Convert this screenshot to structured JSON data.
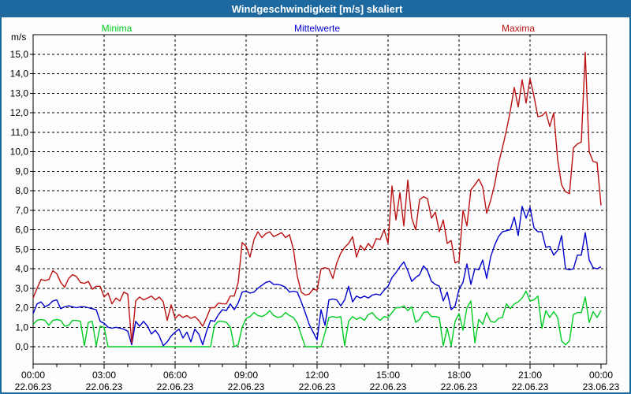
{
  "window": {
    "title": "Windgeschwindigkeit [m/s] skaliert"
  },
  "colors": {
    "frame": "#1d689e",
    "titlebar_bg": "#1d689e",
    "titlebar_text": "#ffffff",
    "plot_bg": "#ffffff",
    "grid": "#000000",
    "minima": "#00cc22",
    "mittelwerte": "#0000cc",
    "maxima": "#bb1111"
  },
  "legend": [
    {
      "label": "Minima",
      "color": "#00cc22"
    },
    {
      "label": "Mittelwerte",
      "color": "#0000cc"
    },
    {
      "label": "Maxima",
      "color": "#bb1111"
    }
  ],
  "axes": {
    "y_unit_label": "m/s",
    "y_tick_labels": [
      "0,0",
      "1,0",
      "2,0",
      "3,0",
      "4,0",
      "5,0",
      "6,0",
      "7,0",
      "8,0",
      "9,0",
      "10,0",
      "11,0",
      "12,0",
      "13,0",
      "14,0",
      "15,0"
    ],
    "x_ticks": [
      {
        "time": "00:00",
        "date": "22.06.23"
      },
      {
        "time": "03:00",
        "date": "22.06.23"
      },
      {
        "time": "06:00",
        "date": "22.06.23"
      },
      {
        "time": "09:00",
        "date": "22.06.23"
      },
      {
        "time": "12:00",
        "date": "22.06.23"
      },
      {
        "time": "15:00",
        "date": "22.06.23"
      },
      {
        "time": "18:00",
        "date": "22.06.23"
      },
      {
        "time": "21:00",
        "date": "22.06.23"
      },
      {
        "time": "00:00",
        "date": "23.06.23"
      }
    ]
  },
  "chart_data": {
    "type": "line",
    "title": "Windgeschwindigkeit [m/s] skaliert",
    "ylabel": "m/s",
    "ylim": [
      0,
      15
    ],
    "y_major_step": 1.0,
    "grid": true,
    "legend_position": "top",
    "x_start": "22.06.23 00:00",
    "x_end": "23.06.23 00:00",
    "x_interval_minutes": 10,
    "x_major_tick_hours": 3,
    "x_minor_tick_hours": 1,
    "series": [
      {
        "name": "Minima",
        "color": "#00cc22",
        "values": [
          1.15,
          1.35,
          1.4,
          1.35,
          1.1,
          1.35,
          1.4,
          1.35,
          1.05,
          1.1,
          1.35,
          1.35,
          1.3,
          0.05,
          1.25,
          1.3,
          0.05,
          1.05,
          1.0,
          0.0,
          0.0,
          0.0,
          0.0,
          0.0,
          0.0,
          0.0,
          0.0,
          0.0,
          0.0,
          0.0,
          0.0,
          0.0,
          0.0,
          0.0,
          0.0,
          0.0,
          0.0,
          0.0,
          0.0,
          0.0,
          0.0,
          0.0,
          0.0,
          0.0,
          0.0,
          0.0,
          1.1,
          1.3,
          1.3,
          1.25,
          1.0,
          0.0,
          0.1,
          1.0,
          1.45,
          1.55,
          1.75,
          1.6,
          1.55,
          1.65,
          1.85,
          1.6,
          1.5,
          1.55,
          1.75,
          1.6,
          1.5,
          1.2,
          0.6,
          0.0,
          0.0,
          0.0,
          0.0,
          0.0,
          0.7,
          1.5,
          1.55,
          1.5,
          1.55,
          0.05,
          1.3,
          1.55,
          1.4,
          1.5,
          1.35,
          1.65,
          1.75,
          1.5,
          1.35,
          1.55,
          1.5,
          1.75,
          2.0,
          2.0,
          2.1,
          1.85,
          2.05,
          1.25,
          1.4,
          1.75,
          1.8,
          1.55,
          1.55,
          1.5,
          0.05,
          0.95,
          0.05,
          1.3,
          1.7,
          0.85,
          2.0,
          2.35,
          0.2,
          1.4,
          1.15,
          1.75,
          1.3,
          1.25,
          1.45,
          1.5,
          2.2,
          1.95,
          2.2,
          2.3,
          2.5,
          2.85,
          2.35,
          2.4,
          2.6,
          0.95,
          1.85,
          1.5,
          1.8,
          1.5,
          0.3,
          0.1,
          0.3,
          1.65,
          1.75,
          1.75,
          2.55,
          1.25,
          1.8,
          1.5,
          1.85
        ]
      },
      {
        "name": "Mittelwerte",
        "color": "#0000cc",
        "values": [
          1.7,
          2.2,
          2.3,
          2.05,
          2.15,
          2.35,
          2.4,
          1.95,
          2.05,
          2.1,
          2.05,
          2.0,
          2.05,
          2.05,
          2.0,
          1.95,
          1.9,
          1.3,
          1.2,
          1.0,
          0.95,
          1.0,
          0.95,
          0.9,
          0.8,
          0.1,
          1.3,
          1.05,
          1.3,
          1.05,
          0.65,
          0.85,
          0.55,
          0.05,
          0.25,
          0.55,
          0.75,
          0.9,
          0.45,
          0.75,
          0.25,
          0.9,
          0.65,
          0.1,
          0.8,
          1.35,
          1.3,
          1.65,
          1.9,
          1.85,
          2.2,
          1.9,
          2.25,
          2.8,
          2.85,
          2.75,
          2.8,
          3.0,
          3.15,
          3.3,
          3.35,
          3.2,
          3.2,
          3.15,
          3.05,
          2.8,
          2.85,
          2.8,
          2.3,
          1.75,
          1.15,
          0.75,
          0.35,
          1.9,
          1.1,
          2.4,
          2.45,
          2.4,
          2.1,
          2.4,
          3.1,
          2.3,
          2.6,
          2.5,
          2.6,
          2.5,
          2.65,
          2.7,
          2.65,
          2.9,
          3.1,
          3.55,
          3.8,
          4.1,
          4.35,
          3.9,
          3.35,
          3.55,
          3.7,
          4.15,
          3.9,
          3.35,
          3.2,
          3.1,
          2.35,
          2.8,
          1.9,
          2.1,
          2.95,
          3.3,
          4.25,
          3.2,
          4.0,
          3.95,
          4.45,
          3.5,
          4.6,
          5.2,
          5.65,
          5.9,
          5.95,
          6.0,
          6.65,
          5.7,
          7.2,
          6.6,
          7.15,
          6.1,
          5.9,
          5.9,
          5.1,
          5.15,
          4.7,
          4.95,
          5.7,
          4.0,
          3.95,
          4.0,
          4.7,
          4.7,
          5.85,
          4.45,
          4.05,
          4.0,
          4.1
        ]
      },
      {
        "name": "Maxima",
        "color": "#bb1111",
        "values": [
          2.5,
          3.0,
          3.45,
          3.4,
          3.45,
          3.9,
          3.75,
          3.3,
          3.05,
          3.5,
          3.7,
          3.6,
          3.3,
          3.25,
          3.35,
          2.95,
          3.1,
          3.1,
          2.55,
          2.75,
          2.2,
          2.5,
          2.35,
          2.8,
          2.7,
          0.2,
          2.35,
          2.55,
          2.4,
          2.5,
          2.6,
          2.4,
          2.55,
          2.3,
          1.35,
          2.15,
          1.45,
          1.65,
          1.5,
          1.6,
          1.45,
          1.55,
          1.35,
          1.05,
          1.5,
          2.0,
          2.0,
          2.25,
          2.2,
          2.2,
          2.6,
          2.6,
          3.3,
          5.35,
          5.15,
          4.6,
          5.5,
          5.9,
          5.6,
          5.8,
          5.9,
          5.65,
          5.75,
          5.85,
          5.6,
          5.75,
          5.0,
          3.6,
          2.8,
          2.65,
          2.7,
          2.95,
          2.9,
          4.0,
          4.05,
          4.0,
          3.5,
          4.3,
          4.8,
          5.1,
          5.3,
          5.65,
          4.6,
          5.2,
          4.95,
          5.3,
          5.05,
          5.55,
          5.5,
          6.0,
          5.3,
          8.25,
          6.5,
          7.9,
          6.2,
          8.55,
          6.6,
          6.0,
          7.55,
          7.7,
          7.6,
          6.6,
          6.9,
          5.9,
          6.5,
          5.3,
          5.45,
          4.3,
          4.4,
          7.0,
          6.2,
          8.05,
          8.3,
          8.6,
          8.2,
          6.85,
          7.5,
          8.3,
          9.4,
          10.2,
          11.1,
          12.1,
          13.3,
          12.3,
          13.7,
          12.5,
          13.75,
          12.85,
          11.8,
          11.85,
          12.05,
          11.3,
          12.0,
          9.6,
          8.3,
          7.95,
          7.85,
          10.2,
          10.4,
          10.5,
          15.1,
          10.0,
          9.5,
          9.45,
          7.25
        ]
      }
    ]
  }
}
